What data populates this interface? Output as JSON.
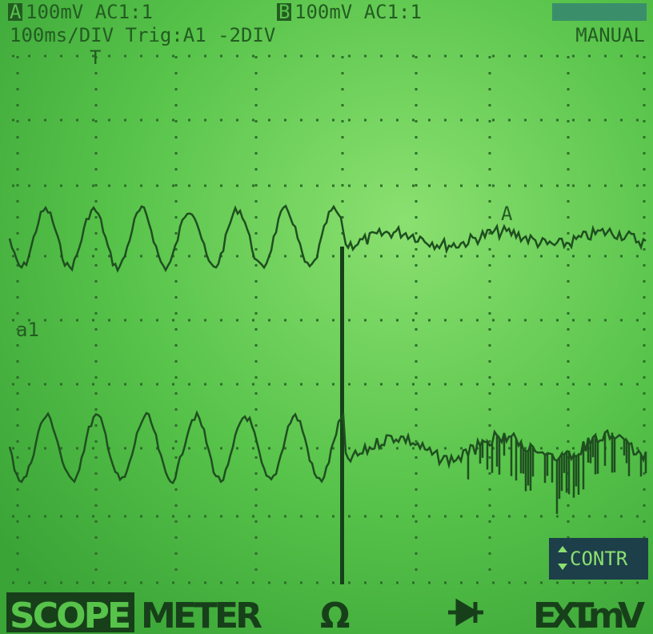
{
  "header": {
    "channel_a": {
      "id": "A",
      "setting": "100mV AC1:1"
    },
    "channel_b": {
      "id": "B",
      "setting": "100mV AC1:1"
    },
    "timebase": "100ms/DIV Trig:A1 -2DIV",
    "mode": "MANUAL"
  },
  "markers": {
    "trigger": "T",
    "trace_a": "A",
    "trace_a1": "a1"
  },
  "contrast_button": "CONTR",
  "menu": [
    "SCOPE",
    "METER",
    "Ω",
    "EXT.mV"
  ]
}
